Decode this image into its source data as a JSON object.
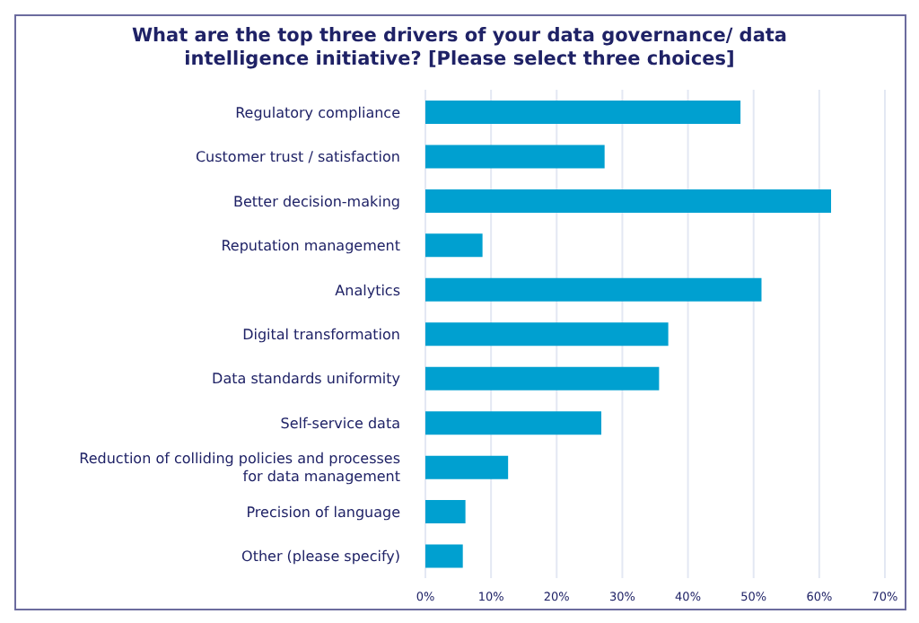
{
  "chart_data": {
    "type": "bar",
    "orientation": "horizontal",
    "title": "What are the top three drivers of your data governance/ data intelligence initiative? [Please select three choices]",
    "categories": [
      "Regulatory compliance",
      "Customer trust / satisfaction",
      "Better decision-making",
      "Reputation management",
      "Analytics",
      "Digital transformation",
      "Data standards uniformity",
      "Self-service data",
      "Reduction of colliding policies and processes for data management",
      "Precision of language",
      "Other (please specify)"
    ],
    "values": [
      48,
      27.3,
      61.8,
      8.7,
      51.2,
      37,
      35.6,
      26.8,
      12.6,
      6.1,
      5.7
    ],
    "color": "#00a0d0",
    "xlim": [
      0,
      70
    ],
    "xticks": [
      {
        "value": 0,
        "label": "0%"
      },
      {
        "value": 10,
        "label": "10%"
      },
      {
        "value": 20,
        "label": "20%"
      },
      {
        "value": 30,
        "label": "30%"
      },
      {
        "value": 40,
        "label": "40%"
      },
      {
        "value": 50,
        "label": "50%"
      },
      {
        "value": 60,
        "label": "60%"
      },
      {
        "value": 70,
        "label": "70%"
      }
    ],
    "grid": "x"
  }
}
